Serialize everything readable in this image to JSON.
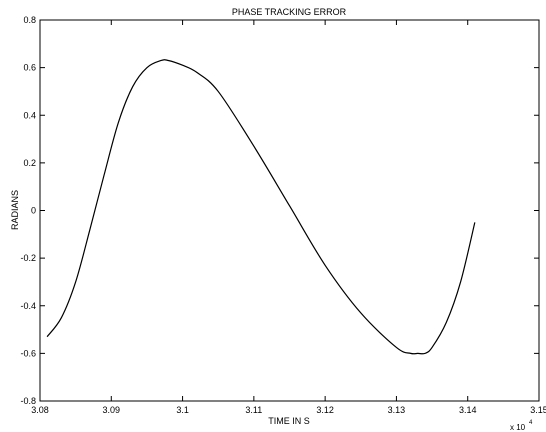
{
  "chart_data": {
    "type": "line",
    "title": "PHASE TRACKING ERROR",
    "xlabel": "TIME IN S",
    "ylabel": "RADIANS",
    "x_multiplier_label": "x 10",
    "x_multiplier_exponent": "4",
    "xlim": [
      3.08,
      3.15
    ],
    "ylim": [
      -0.8,
      0.8
    ],
    "xticks": [
      3.08,
      3.09,
      3.1,
      3.11,
      3.12,
      3.13,
      3.14,
      3.15
    ],
    "xtick_labels": [
      "3.08",
      "3.09",
      "3.1",
      "3.11",
      "3.12",
      "3.13",
      "3.14",
      "3.15"
    ],
    "yticks": [
      -0.8,
      -0.6,
      -0.4,
      -0.2,
      0,
      0.2,
      0.4,
      0.6,
      0.8
    ],
    "ytick_labels": [
      "-0.8",
      "-0.6",
      "-0.4",
      "-0.2",
      "0",
      "0.2",
      "0.4",
      "0.6",
      "0.8"
    ],
    "grid": false,
    "line_color": "#000000",
    "series": [
      {
        "x": [
          3.081,
          3.083,
          3.085,
          3.087,
          3.089,
          3.091,
          3.093,
          3.095,
          3.097,
          3.098,
          3.1,
          3.102,
          3.105,
          3.11,
          3.115,
          3.12,
          3.125,
          3.13,
          3.132,
          3.133,
          3.134,
          3.135,
          3.137,
          3.139,
          3.141
        ],
        "y": [
          -0.53,
          -0.45,
          -0.3,
          -0.08,
          0.15,
          0.37,
          0.52,
          0.6,
          0.63,
          0.63,
          0.61,
          0.58,
          0.5,
          0.27,
          0.02,
          -0.23,
          -0.43,
          -0.575,
          -0.6,
          -0.6,
          -0.6,
          -0.575,
          -0.47,
          -0.3,
          -0.05
        ]
      }
    ]
  }
}
